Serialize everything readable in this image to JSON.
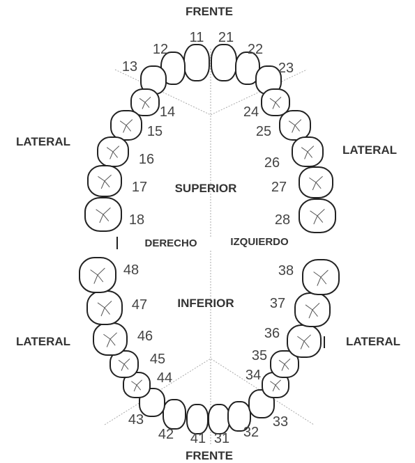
{
  "header": {
    "top": "FRENTE",
    "bottom": "FRENTE"
  },
  "regions": {
    "upper": "SUPERIOR",
    "lower": "INFERIOR",
    "right": "DERECHO",
    "left": "IZQUIERDO"
  },
  "sides": {
    "upper_left": "LATERAL",
    "upper_right": "LATERAL",
    "lower_left": "LATERAL",
    "lower_right": "LATERAL"
  },
  "teeth": [
    {
      "label": "11"
    },
    {
      "label": "12"
    },
    {
      "label": "13"
    },
    {
      "label": "14"
    },
    {
      "label": "15"
    },
    {
      "label": "16"
    },
    {
      "label": "17"
    },
    {
      "label": "18"
    },
    {
      "label": "21"
    },
    {
      "label": "22"
    },
    {
      "label": "23"
    },
    {
      "label": "24"
    },
    {
      "label": "25"
    },
    {
      "label": "26"
    },
    {
      "label": "27"
    },
    {
      "label": "28"
    },
    {
      "label": "31"
    },
    {
      "label": "32"
    },
    {
      "label": "33"
    },
    {
      "label": "34"
    },
    {
      "label": "35"
    },
    {
      "label": "36"
    },
    {
      "label": "37"
    },
    {
      "label": "38"
    },
    {
      "label": "41"
    },
    {
      "label": "42"
    },
    {
      "label": "43"
    },
    {
      "label": "44"
    },
    {
      "label": "45"
    },
    {
      "label": "46"
    },
    {
      "label": "47"
    },
    {
      "label": "48"
    }
  ]
}
